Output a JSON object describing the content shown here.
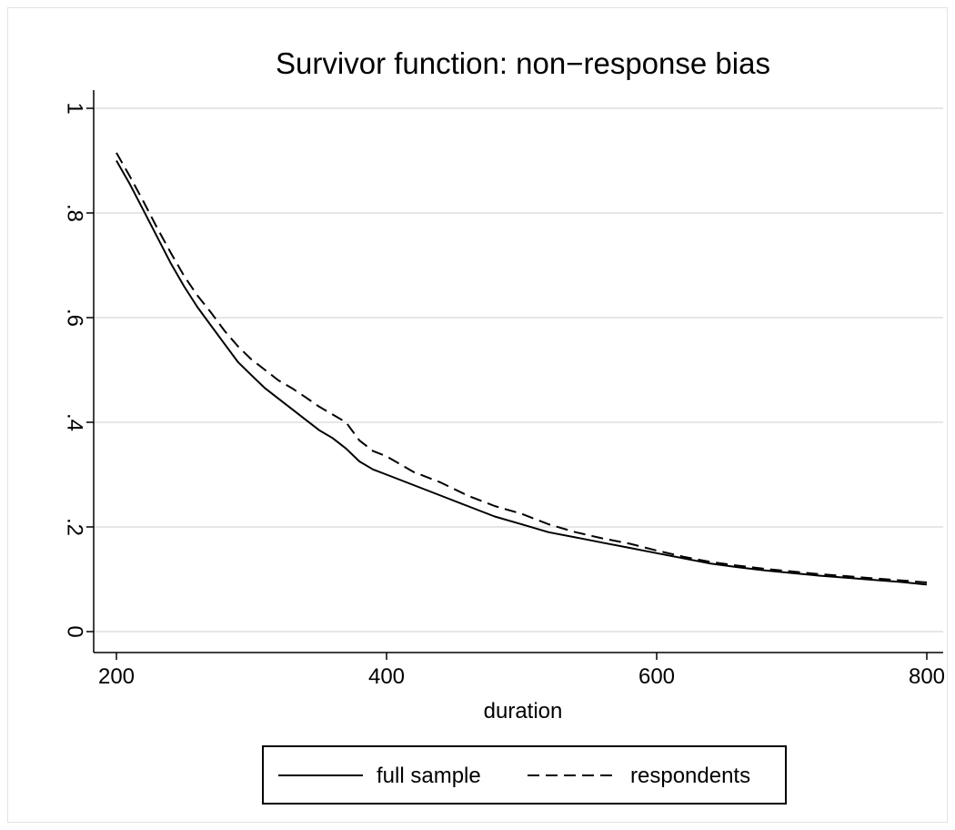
{
  "chart_data": {
    "type": "line",
    "title": "Survivor function: non−response bias",
    "xlabel": "duration",
    "ylabel": "",
    "xlim": [
      200,
      800
    ],
    "ylim": [
      0,
      1
    ],
    "x_ticks": [
      200,
      400,
      600,
      800
    ],
    "x_tick_labels": [
      "200",
      "400",
      "600",
      "800"
    ],
    "y_ticks": [
      0,
      0.2,
      0.4,
      0.6,
      0.8,
      1
    ],
    "y_tick_labels": [
      "0",
      ".2",
      ".4",
      ".6",
      ".8",
      "1"
    ],
    "grid": "horizontal",
    "legend_position": "bottom",
    "series": [
      {
        "name": "full sample",
        "style": "solid",
        "color": "#000000",
        "x": [
          200,
          210,
          220,
          230,
          240,
          250,
          260,
          270,
          280,
          290,
          300,
          310,
          320,
          330,
          340,
          350,
          360,
          370,
          380,
          390,
          400,
          420,
          440,
          460,
          480,
          500,
          520,
          540,
          560,
          580,
          600,
          620,
          640,
          660,
          680,
          700,
          720,
          740,
          760,
          780,
          800
        ],
        "y": [
          0.9,
          0.855,
          0.805,
          0.755,
          0.705,
          0.66,
          0.62,
          0.585,
          0.55,
          0.515,
          0.49,
          0.465,
          0.445,
          0.425,
          0.405,
          0.385,
          0.37,
          0.35,
          0.325,
          0.31,
          0.3,
          0.28,
          0.26,
          0.24,
          0.22,
          0.205,
          0.19,
          0.18,
          0.17,
          0.16,
          0.15,
          0.14,
          0.13,
          0.123,
          0.117,
          0.112,
          0.107,
          0.103,
          0.099,
          0.095,
          0.09
        ]
      },
      {
        "name": "respondents",
        "style": "dashed",
        "color": "#000000",
        "x": [
          200,
          210,
          220,
          230,
          240,
          250,
          260,
          270,
          280,
          290,
          300,
          310,
          320,
          330,
          340,
          350,
          360,
          370,
          380,
          390,
          400,
          420,
          440,
          460,
          480,
          500,
          520,
          540,
          560,
          580,
          600,
          620,
          640,
          660,
          680,
          700,
          720,
          740,
          760,
          780,
          800
        ],
        "y": [
          0.915,
          0.87,
          0.822,
          0.772,
          0.725,
          0.68,
          0.642,
          0.61,
          0.575,
          0.545,
          0.52,
          0.5,
          0.48,
          0.465,
          0.448,
          0.43,
          0.415,
          0.4,
          0.365,
          0.345,
          0.335,
          0.305,
          0.285,
          0.26,
          0.24,
          0.225,
          0.205,
          0.19,
          0.178,
          0.168,
          0.155,
          0.143,
          0.133,
          0.126,
          0.12,
          0.115,
          0.11,
          0.106,
          0.102,
          0.098,
          0.094
        ]
      }
    ]
  }
}
